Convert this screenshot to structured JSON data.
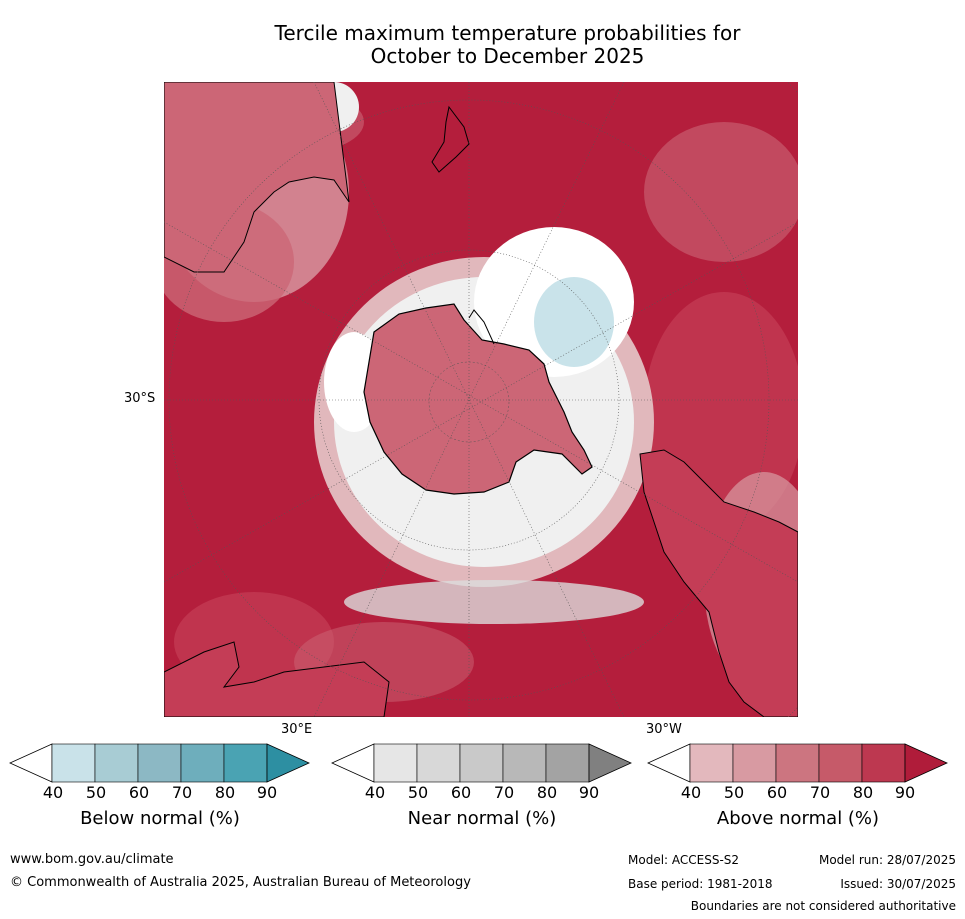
{
  "title": {
    "line1": "Tercile maximum temperature probabilities for",
    "line2": "October to December 2025"
  },
  "map": {
    "projection": "south-polar",
    "lat_label": "30°S",
    "lon_label_east": "30°E",
    "lon_label_west": "30°W",
    "colors": {
      "above_90": "#b41e3c",
      "above_80": "#c43d56",
      "above_70": "#cc6676",
      "above_60": "#d7949d",
      "above_50": "#e1b8bc",
      "near": "#dcdcdc",
      "below_40": "#c9e3ea",
      "neutral": "#ffffff",
      "coast": "#000000"
    }
  },
  "colorbars": [
    {
      "label": "Below normal (%)",
      "ticks": [
        "40",
        "50",
        "60",
        "70",
        "80",
        "90"
      ],
      "colors": [
        "#c9e2e9",
        "#a8ccd4",
        "#8cb8c4",
        "#6eaebc",
        "#4aa3b3",
        "#2d8fa2"
      ]
    },
    {
      "label": "Near normal (%)",
      "ticks": [
        "40",
        "50",
        "60",
        "70",
        "80",
        "90"
      ],
      "colors": [
        "#e6e6e6",
        "#d8d8d8",
        "#c9c9c9",
        "#b8b8b8",
        "#a3a3a3",
        "#808080"
      ]
    },
    {
      "label": "Above normal (%)",
      "ticks": [
        "40",
        "50",
        "60",
        "70",
        "80",
        "90"
      ],
      "colors": [
        "#e3b8bd",
        "#d89aa2",
        "#cc7580",
        "#c65a69",
        "#bd3850",
        "#b01c3a"
      ]
    }
  ],
  "footer": {
    "website": "www.bom.gov.au/climate",
    "copyright": "© Commonwealth of Australia 2025, Australian Bureau of Meteorology",
    "model": "Model: ACCESS-S2",
    "model_run": "Model run: 28/07/2025",
    "base_period": "Base period: 1981-2018",
    "issued": "Issued: 30/07/2025",
    "disclaimer": "Boundaries are not considered authoritative"
  }
}
